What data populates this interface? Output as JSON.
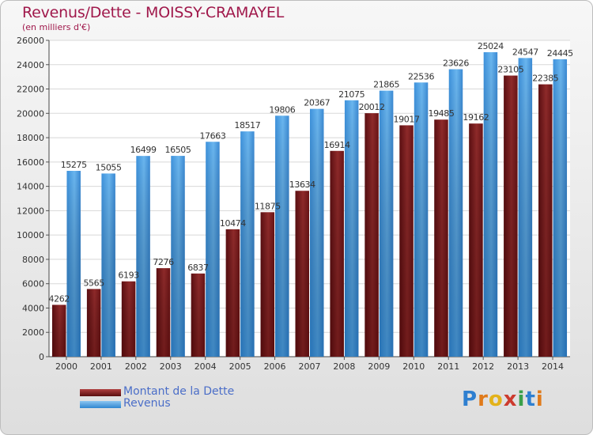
{
  "title": "Revenus/Dette - MOISSY-CRAMAYEL",
  "subtitle": "(en milliers d'€)",
  "logo": "Proxiti",
  "colors": {
    "title": "#a0184b",
    "legend_text": "#4b6ec8",
    "debt": "#7a1c1c",
    "revenue": "#4fa3e6"
  },
  "legend": [
    {
      "label": "Montant de la Dette",
      "color": "#7a1c1c"
    },
    {
      "label": "Revenus",
      "color": "#4fa3e6"
    }
  ],
  "chart_data": {
    "type": "bar",
    "title": "Revenus/Dette - MOISSY-CRAMAYEL",
    "subtitle": "(en milliers d'€)",
    "xlabel": "",
    "ylabel": "",
    "ylim": [
      0,
      26000
    ],
    "yticks": [
      0,
      2000,
      4000,
      6000,
      8000,
      10000,
      12000,
      14000,
      16000,
      18000,
      20000,
      22000,
      24000,
      26000
    ],
    "grid": true,
    "legend_position": "bottom-left",
    "categories": [
      "2000",
      "2001",
      "2002",
      "2003",
      "2004",
      "2005",
      "2006",
      "2007",
      "2008",
      "2009",
      "2010",
      "2011",
      "2012",
      "2013",
      "2014"
    ],
    "series": [
      {
        "name": "Montant de la Dette",
        "values": [
          4262,
          5565,
          6193,
          7276,
          6837,
          10474,
          11875,
          13634,
          16914,
          20012,
          19017,
          19485,
          19162,
          23105,
          22385
        ],
        "labels": [
          "4262",
          "5565",
          "6193",
          "7276",
          "6837",
          "10474",
          "11875",
          "13634",
          "16914",
          "20012",
          "19017",
          "19485",
          "19162",
          "23105",
          "22385"
        ]
      },
      {
        "name": "Revenus",
        "values": [
          15275,
          15055,
          16499,
          16505,
          17663,
          18517,
          19806,
          20367,
          21075,
          21865,
          22536,
          23626,
          25024,
          24547,
          24445
        ],
        "labels": [
          "15275",
          "15055",
          "16499",
          "16505",
          "17663",
          "18517",
          "19806",
          "20367",
          "21075",
          "21865",
          "22536",
          "23626",
          "25024",
          "24547",
          "24445"
        ]
      }
    ]
  }
}
